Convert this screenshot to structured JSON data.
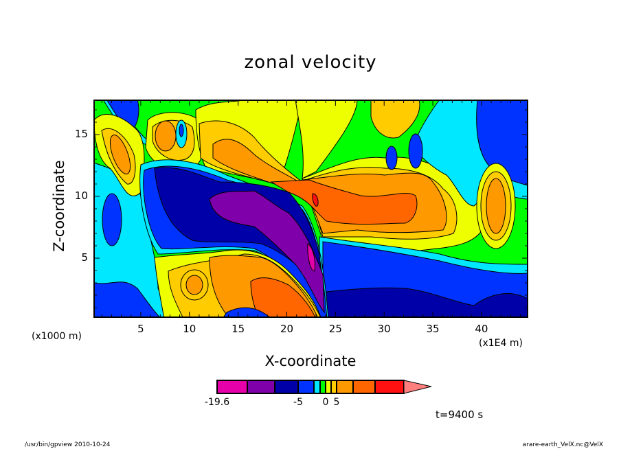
{
  "chart_data": {
    "type": "heatmap",
    "subtype": "filled-contour",
    "title": "zonal velocity",
    "xlabel": "X-coordinate",
    "ylabel": "Z-coordinate",
    "x_unit_label": "(x1E4 m)",
    "y_unit_label": "(x1000 m)",
    "xlim": [
      0.2,
      44.7
    ],
    "ylim": [
      0.2,
      17.8
    ],
    "xticks": [
      5,
      10,
      15,
      20,
      25,
      30,
      35,
      40
    ],
    "yticks": [
      5,
      10,
      15
    ],
    "colorbar": {
      "colors": [
        "#E600AA",
        "#7F00AA",
        "#0000A8",
        "#0033FF",
        "#00E8FF",
        "#00FF00",
        "#EEFF00",
        "#FFCC00",
        "#FF9900",
        "#FF6600",
        "#FF1111"
      ],
      "overflow_color": "#FF7F7F",
      "labels": [
        {
          "text": "-19.6",
          "index": 0
        },
        {
          "text": "-5",
          "index": 3
        },
        {
          "text": "0",
          "index": 6
        },
        {
          "text": "5",
          "index": 8
        }
      ]
    },
    "field_summary": "negative (westward) jet in mid-levels left of x~24, positive (eastward) flow above right"
  },
  "annotations": {
    "time": "t=9400 s",
    "program": "/usr/bin/gpview  2010-10-24",
    "source": "arare-earth_VelX.nc@VelX"
  }
}
